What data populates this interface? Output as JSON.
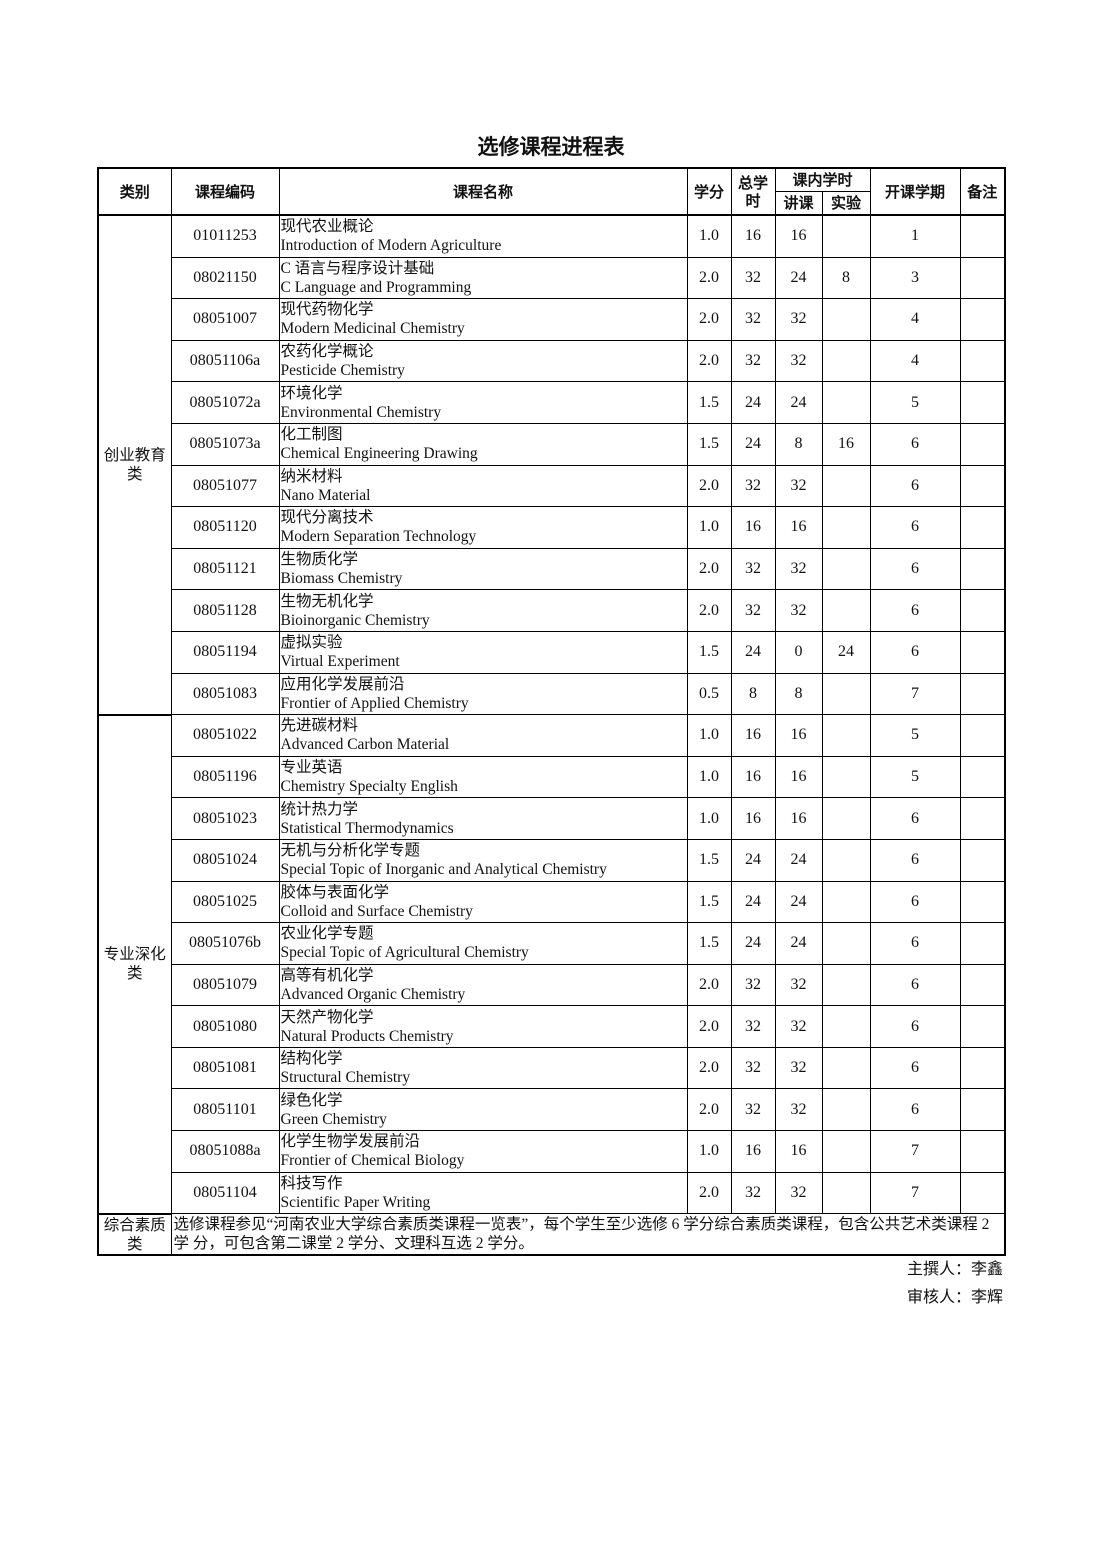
{
  "title": "选修课程进程表",
  "headers": {
    "category": "类别",
    "code": "课程编码",
    "name": "课程名称",
    "credits": "学分",
    "total_hours": "总学时",
    "in_class_hours": "课内学时",
    "lecture": "讲课",
    "lab": "实验",
    "semester": "开课学期",
    "remarks": "备注"
  },
  "groups": [
    {
      "category": "创业教育类",
      "courses": [
        {
          "code": "01011253",
          "cn": "现代农业概论",
          "en": "Introduction of Modern Agriculture",
          "credits": "1.0",
          "total": "16",
          "lecture": "16",
          "lab": "",
          "semester": "1",
          "remarks": ""
        },
        {
          "code": "08021150",
          "cn": "C 语言与程序设计基础",
          "en": "C Language and Programming",
          "credits": "2.0",
          "total": "32",
          "lecture": "24",
          "lab": "8",
          "semester": "3",
          "remarks": ""
        },
        {
          "code": "08051007",
          "cn": "现代药物化学",
          "en": "Modern Medicinal Chemistry",
          "credits": "2.0",
          "total": "32",
          "lecture": "32",
          "lab": "",
          "semester": "4",
          "remarks": ""
        },
        {
          "code": "08051106a",
          "cn": "农药化学概论",
          "en": "Pesticide Chemistry",
          "credits": "2.0",
          "total": "32",
          "lecture": "32",
          "lab": "",
          "semester": "4",
          "remarks": ""
        },
        {
          "code": "08051072a",
          "cn": "环境化学",
          "en": "Environmental Chemistry",
          "credits": "1.5",
          "total": "24",
          "lecture": "24",
          "lab": "",
          "semester": "5",
          "remarks": ""
        },
        {
          "code": "08051073a",
          "cn": "化工制图",
          "en": "Chemical Engineering Drawing",
          "credits": "1.5",
          "total": "24",
          "lecture": "8",
          "lab": "16",
          "semester": "6",
          "remarks": ""
        },
        {
          "code": "08051077",
          "cn": "纳米材料",
          "en": "Nano Material",
          "credits": "2.0",
          "total": "32",
          "lecture": "32",
          "lab": "",
          "semester": "6",
          "remarks": ""
        },
        {
          "code": "08051120",
          "cn": "现代分离技术",
          "en": "Modern Separation Technology",
          "credits": "1.0",
          "total": "16",
          "lecture": "16",
          "lab": "",
          "semester": "6",
          "remarks": ""
        },
        {
          "code": "08051121",
          "cn": "生物质化学",
          "en": "Biomass Chemistry",
          "credits": "2.0",
          "total": "32",
          "lecture": "32",
          "lab": "",
          "semester": "6",
          "remarks": ""
        },
        {
          "code": "08051128",
          "cn": "生物无机化学",
          "en": "Bioinorganic Chemistry",
          "credits": "2.0",
          "total": "32",
          "lecture": "32",
          "lab": "",
          "semester": "6",
          "remarks": ""
        },
        {
          "code": "08051194",
          "cn": "虚拟实验",
          "en": "Virtual Experiment",
          "credits": "1.5",
          "total": "24",
          "lecture": "0",
          "lab": "24",
          "semester": "6",
          "remarks": ""
        },
        {
          "code": "08051083",
          "cn": "应用化学发展前沿",
          "en": "Frontier of Applied Chemistry",
          "credits": "0.5",
          "total": "8",
          "lecture": "8",
          "lab": "",
          "semester": "7",
          "remarks": ""
        }
      ]
    },
    {
      "category": "专业深化类",
      "courses": [
        {
          "code": "08051022",
          "cn": "先进碳材料",
          "en": "Advanced Carbon Material",
          "credits": "1.0",
          "total": "16",
          "lecture": "16",
          "lab": "",
          "semester": "5",
          "remarks": ""
        },
        {
          "code": "08051196",
          "cn": "专业英语",
          "en": "Chemistry Specialty English",
          "credits": "1.0",
          "total": "16",
          "lecture": "16",
          "lab": "",
          "semester": "5",
          "remarks": ""
        },
        {
          "code": "08051023",
          "cn": "统计热力学",
          "en": "Statistical Thermodynamics",
          "credits": "1.0",
          "total": "16",
          "lecture": "16",
          "lab": "",
          "semester": "6",
          "remarks": ""
        },
        {
          "code": "08051024",
          "cn": "无机与分析化学专题",
          "en": "Special Topic of Inorganic and Analytical Chemistry",
          "credits": "1.5",
          "total": "24",
          "lecture": "24",
          "lab": "",
          "semester": "6",
          "remarks": ""
        },
        {
          "code": "08051025",
          "cn": "胶体与表面化学",
          "en": "Colloid and Surface Chemistry",
          "credits": "1.5",
          "total": "24",
          "lecture": "24",
          "lab": "",
          "semester": "6",
          "remarks": ""
        },
        {
          "code": "08051076b",
          "cn": "农业化学专题",
          "en": "Special Topic of Agricultural Chemistry",
          "credits": "1.5",
          "total": "24",
          "lecture": "24",
          "lab": "",
          "semester": "6",
          "remarks": ""
        },
        {
          "code": "08051079",
          "cn": "高等有机化学",
          "en": "Advanced Organic Chemistry",
          "credits": "2.0",
          "total": "32",
          "lecture": "32",
          "lab": "",
          "semester": "6",
          "remarks": ""
        },
        {
          "code": "08051080",
          "cn": "天然产物化学",
          "en": "Natural Products Chemistry",
          "credits": "2.0",
          "total": "32",
          "lecture": "32",
          "lab": "",
          "semester": "6",
          "remarks": ""
        },
        {
          "code": "08051081",
          "cn": "结构化学",
          "en": "Structural Chemistry",
          "credits": "2.0",
          "total": "32",
          "lecture": "32",
          "lab": "",
          "semester": "6",
          "remarks": ""
        },
        {
          "code": "08051101",
          "cn": "绿色化学",
          "en": "Green Chemistry",
          "credits": "2.0",
          "total": "32",
          "lecture": "32",
          "lab": "",
          "semester": "6",
          "remarks": ""
        },
        {
          "code": "08051088a",
          "cn": "化学生物学发展前沿",
          "en": "Frontier of Chemical Biology",
          "credits": "1.0",
          "total": "16",
          "lecture": "16",
          "lab": "",
          "semester": "7",
          "remarks": ""
        },
        {
          "code": "08051104",
          "cn": "科技写作",
          "en": "Scientific Paper Writing",
          "credits": "2.0",
          "total": "32",
          "lecture": "32",
          "lab": "",
          "semester": "7",
          "remarks": ""
        }
      ]
    }
  ],
  "general": {
    "category": "综合素质类",
    "note": "选修课程参见“河南农业大学综合素质类课程一览表”，每个学生至少选修 6 学分综合素质类课程，包含公共艺术类课程 2 学 分，可包含第二课堂 2 学分、文理科互选 2 学分。"
  },
  "signatures": {
    "author": "主撰人：李鑫",
    "reviewer": "审核人：李辉"
  }
}
